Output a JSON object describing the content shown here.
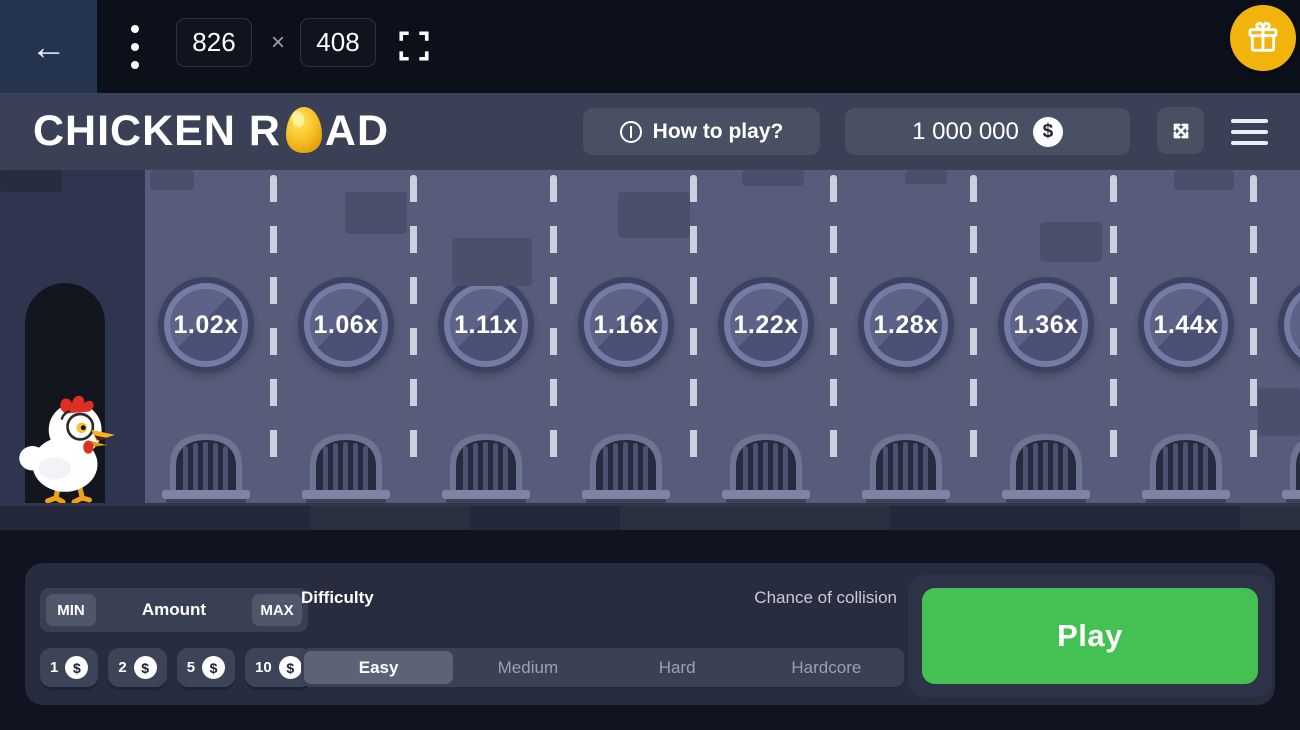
{
  "topbar": {
    "back_label": "←",
    "width_value": "826",
    "dimension_separator": "×",
    "height_value": "408",
    "gift_badge_color": "#f2b30d",
    "icons": [
      "back-arrow",
      "kebab-menu",
      "fullscreen-brackets",
      "gift"
    ]
  },
  "header": {
    "logo_text_1": "CHICKEN R",
    "logo_text_2": "AD",
    "logo_egg_icon": "golden-egg",
    "how_to_play_label": "How to play?",
    "balance_value": "1 000 000",
    "currency_symbol": "$",
    "icons": [
      "info-circle",
      "dollar-coin",
      "expand-arrows",
      "hamburger-menu"
    ]
  },
  "game": {
    "multipliers": [
      "1.02x",
      "1.06x",
      "1.11x",
      "1.16x",
      "1.22x",
      "1.28x",
      "1.36x",
      "1.44x"
    ],
    "character": "chicken",
    "obstacle_icon": "sewer-grate"
  },
  "controls": {
    "min_label": "MIN",
    "amount_label": "Amount",
    "max_label": "MAX",
    "chips": [
      "1",
      "2",
      "5",
      "10"
    ],
    "difficulty_label": "Difficulty",
    "collision_label": "Chance of collision",
    "difficulties": [
      "Easy",
      "Medium",
      "Hard",
      "Hardcore"
    ],
    "selected_difficulty": "Easy",
    "play_label": "Play",
    "play_button_color": "#43c153"
  }
}
